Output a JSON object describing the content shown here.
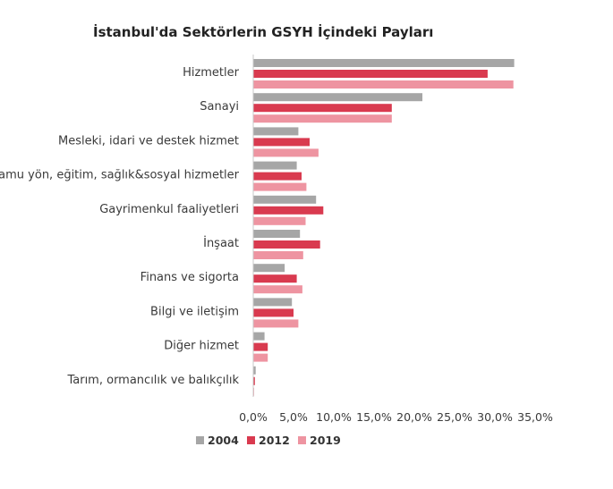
{
  "chart_data": {
    "type": "bar",
    "orientation": "horizontal",
    "title": "İstanbul'da Sektörlerin GSYH İçindeki Payları",
    "xlabel": "",
    "ylabel": "",
    "categories": [
      "Hizmetler",
      "Sanayi",
      "Mesleki, idari ve destek hizmet",
      "Kamu yön, eğitim, sağlık&sosyal hizmetler",
      "Gayrimenkul faaliyetleri",
      "İnşaat",
      "Finans ve sigorta",
      "Bilgi ve iletişim",
      "Diğer hizmet",
      "Tarım, ormancılık ve balıkçılık"
    ],
    "series": [
      {
        "name": "2004",
        "color": "#a6a6a6",
        "values": [
          32.4,
          21.0,
          5.6,
          5.4,
          7.8,
          5.8,
          3.9,
          4.8,
          1.4,
          0.3
        ]
      },
      {
        "name": "2012",
        "color": "#d93a4f",
        "values": [
          29.1,
          17.2,
          7.0,
          6.0,
          8.7,
          8.3,
          5.4,
          5.0,
          1.8,
          0.2
        ]
      },
      {
        "name": "2019",
        "color": "#ee94a1",
        "values": [
          32.3,
          17.2,
          8.1,
          6.6,
          6.5,
          6.2,
          6.1,
          5.6,
          1.8,
          0.1
        ]
      }
    ],
    "xlim": [
      0,
      35
    ],
    "xticks": [
      "0,0%",
      "5,0%",
      "10,0%",
      "15,0%",
      "20,0%",
      "25,0%",
      "30,0%",
      "35,0%"
    ],
    "grid": false,
    "legend_position": "bottom"
  }
}
